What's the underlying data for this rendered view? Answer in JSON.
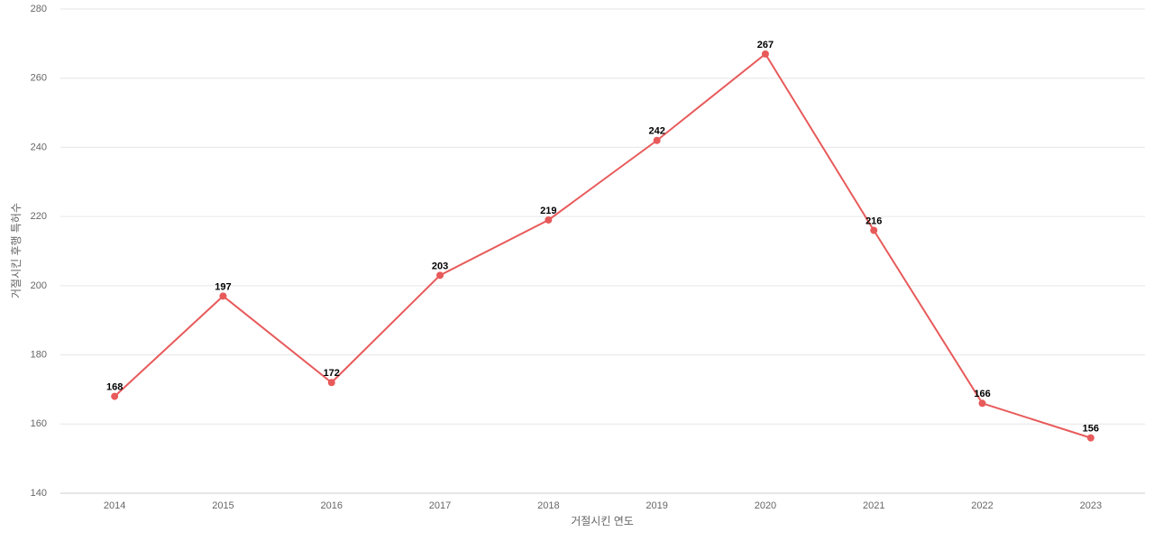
{
  "chart_data": {
    "type": "line",
    "x_label": "거절시킨 연도",
    "y_label": "거절시킨 후행 특허수",
    "categories": [
      "2014",
      "2015",
      "2016",
      "2017",
      "2018",
      "2019",
      "2020",
      "2021",
      "2022",
      "2023"
    ],
    "series": [
      {
        "name": "거절시킨 후행 특허수",
        "color": "#e85a5a",
        "values": [
          168,
          197,
          172,
          203,
          219,
          242,
          267,
          216,
          166,
          156
        ]
      }
    ],
    "ylim": [
      140,
      280
    ],
    "yticks": [
      140,
      160,
      180,
      200,
      220,
      240,
      260,
      280
    ],
    "grid": true
  }
}
